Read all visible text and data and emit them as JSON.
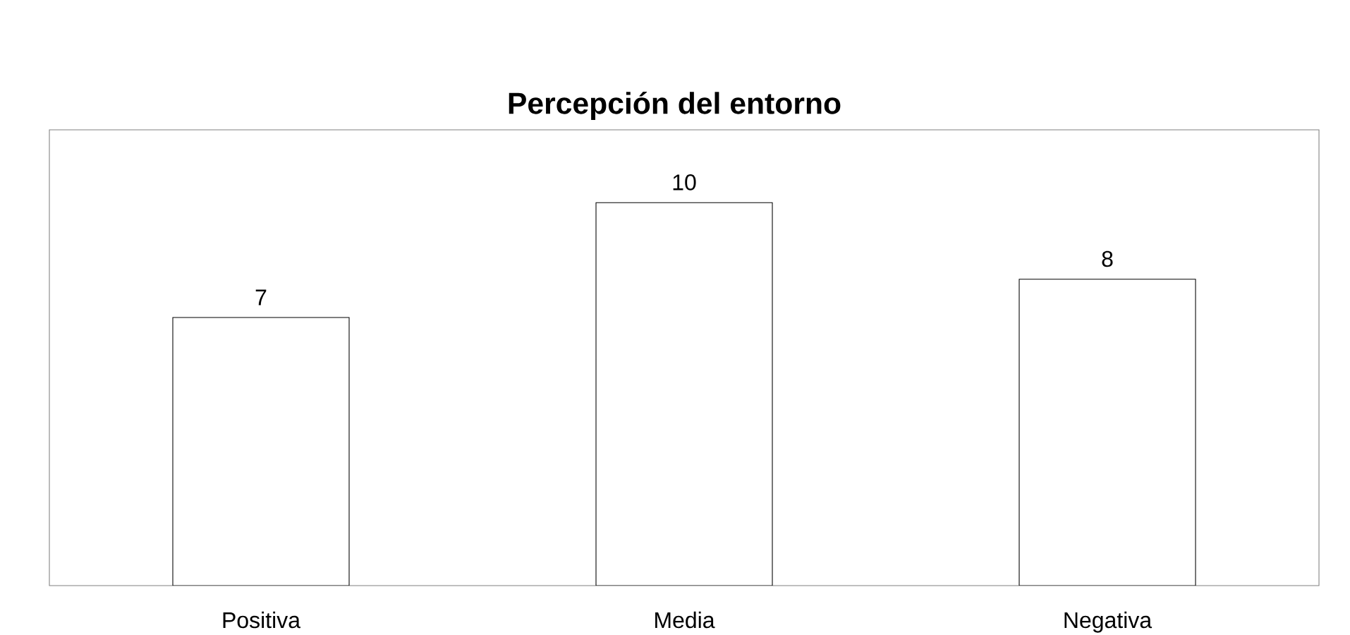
{
  "chart_data": {
    "type": "bar",
    "title": "Percepción del entorno",
    "categories": [
      "Positiva",
      "Media",
      "Negativa"
    ],
    "values": [
      7,
      10,
      8
    ],
    "color": "#ffffff",
    "data_labels": true,
    "tick_labels": "x"
  }
}
